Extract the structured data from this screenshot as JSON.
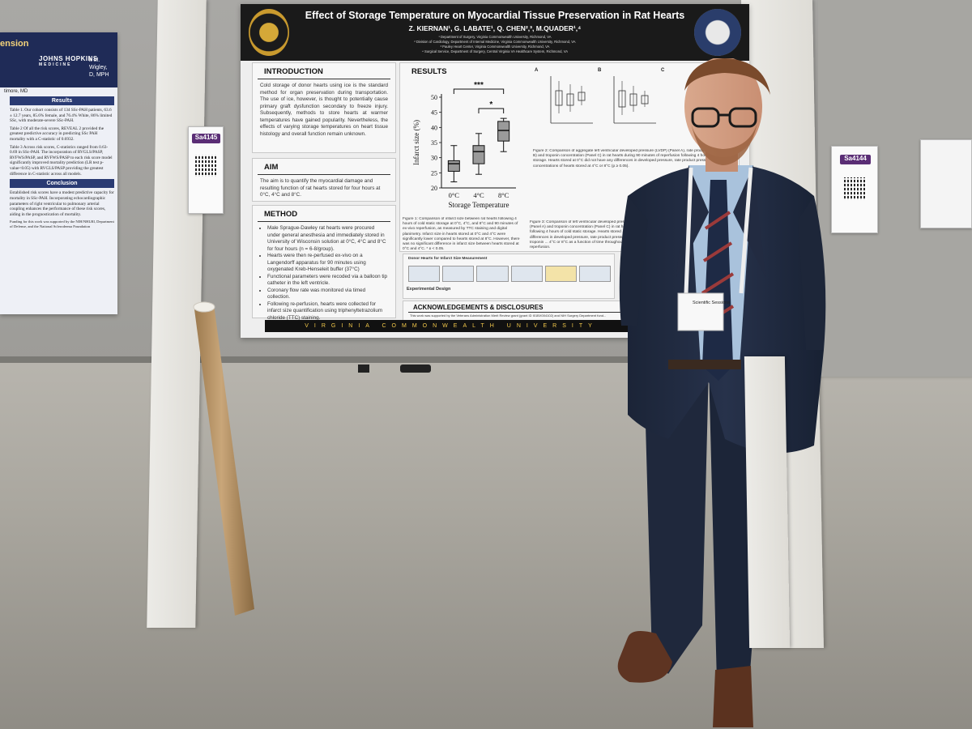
{
  "poster": {
    "title": "Effect of Storage Temperature on Myocardial Tissue Preservation in Rat Hearts",
    "authors": "Z. KIERNAN¹, G. LABATE¹, Q. CHEN²,³, M.QUADER¹,⁴",
    "affiliations": [
      "¹ Department of Surgery, Virginia Commonwealth University, Richmond, VA",
      "² Division of Cardiology, Department of Internal Medicine, Virginia Commonwealth University, Richmond, VA",
      "³ Pauley Heart Center, Virginia Commonwealth University, Richmond, VA",
      "⁴ Surgical Service, Department of Surgery, Central Virginia VA Healthcare System, Richmond, VA"
    ],
    "footer": "VIRGINIA COMMONWEALTH UNIVERSITY",
    "introduction": {
      "heading": "INTRODUCTION",
      "text": "Cold storage of donor hearts using ice is the standard method for organ preservation during transportation. The use of ice, however, is thought to potentially cause primary graft dysfunction secondary to freeze injury. Subsequently, methods to store hearts at warmer temperatures have gained popularity. Nevertheless, the effects of varying storage temperatures on heart tissue histology and overall function remain unknown."
    },
    "aim": {
      "heading": "AIM",
      "text": "The aim is to quantify the myocardial damage and resulting function of rat hearts stored for four hours at 0°C, 4°C and 8°C."
    },
    "method": {
      "heading": "METHOD",
      "items": [
        "Male Sprague-Dawley rat hearts were procured under general anesthesia and immediately stored in University of Wisconsin solution at 0°C, 4°C and 8°C for four hours (n = 6-8/group).",
        "Hearts were then re-perfused ex-vivo on a Langendorff apparatus for 90 minutes using oxygenated Kreb-Henseleit buffer (37°C)",
        "Functional parameters were recoded via a balloon tip catheter in the left ventricle.",
        "Coronary flow rate was monitored via timed collection.",
        "Following re-perfusion, hearts were collected for infarct size quantification using triphenyltetrazolium chloride (TTC) staining."
      ]
    },
    "results": {
      "heading": "RESULTS",
      "fig1_caption": "Figure 1: Comparison of infarct size between rat hearts following 4 hours of cold static storage at 0°C, 4°C, and 8°C and 90 minutes of ex-vivo reperfusion, as measured by TTC staining and digital planimetry. Infarct size in hearts stored at 0°C and 4°C were significantly lower compared to hearts stored at 8°C. However, there was no significant difference in infarct size between hearts stored at 0°C and 4°C. * p < 0.05.",
      "fig2_caption": "Figure 2: Comparison of aggregate left ventricular developed pressure (LVDP) (Panel A), rate product (RPP) (Panel B) and troponin concentration (Panel C) in rat hearts during 90 minutes of reperfusion following 4 hours of cold static storage. Hearts stored at 0°C did not have any differences in developed pressure, rate product pressure and troponin concentrations of hearts stored at 4°C or 8°C (p ≥ 0.05).",
      "fig3_caption": "Figure 3: Comparison of left ventricular developed pressure (Panel A) and troponin concentration (Panel C) in rat hearts following 4 hours of cold static storage. Hearts stored ... differences in developed pressure, rate product pressure and troponin ... 4°C or 8°C as a function of time throughout reperfusion.",
      "panel_labels": [
        "A",
        "B",
        "C"
      ],
      "panel_ylabels": [
        "Developed Pressure (mmHg)",
        "Rate Pressure Product (RPM x mmHg)",
        "Troponin Concentration (ng/mL)"
      ],
      "panel_xlabel": "Storage Temperature",
      "panel_ticks": [
        "0°C",
        "4°C",
        "8°C"
      ]
    },
    "design": {
      "title": "Donor Hearts for Infarct Size Measurement",
      "label": "Experimental Design"
    },
    "acknowledgements": {
      "heading": "ACKNOWLEDGEMENTS & DISCLOSURES",
      "text": "This work was supported by the Veterans Administration Merit Review grant (grant ID I01BX004102) and NIH Surgery Department fund..."
    }
  },
  "chart_data": {
    "type": "box",
    "title": "",
    "xlabel": "Storage Temperature",
    "ylabel": "Infarct size (%)",
    "ylim": [
      20,
      50
    ],
    "yticks": [
      20,
      25,
      30,
      35,
      40,
      45,
      50
    ],
    "categories": [
      "0°C",
      "4°C",
      "8°C"
    ],
    "boxes": [
      {
        "category": "0°C",
        "min": 22,
        "q1": 25.5,
        "median": 28,
        "q3": 29,
        "max": 34
      },
      {
        "category": "4°C",
        "min": 24.5,
        "q1": 28,
        "median": 32,
        "q3": 34,
        "max": 38
      },
      {
        "category": "8°C",
        "min": 32,
        "q1": 35.5,
        "median": 39,
        "q3": 42,
        "max": 43
      }
    ],
    "annotations": [
      {
        "text": "***",
        "from": "0°C",
        "to": "8°C"
      },
      {
        "text": "*",
        "from": "4°C",
        "to": "8°C"
      }
    ],
    "box_color": "#9a9a9a"
  },
  "left_poster": {
    "title": "ension",
    "logo": "JOHNS HOPKINS",
    "logo_sub": "MEDICINE",
    "byline": [
      "k M. Wigley,",
      "D, MPH",
      "timore, MD"
    ],
    "results_heading": "Results",
    "results_text": [
      "Table 1. Our cohort consists of 134 SSc-PAH patients, 63.6 ± 12.7 years, 85.6% female, and 76.4% White, 86% limited SSc, with moderate-severe SSc-PAH.",
      "Table 2 Of all the risk scores, REVEAL 2 provided the greatest predictive accuracy in predicting SSc PAH mortality with a C-statistic of 0.6932.",
      "Table 3 Across risk scores, C-statistics ranged from 0.63-0.69 in SSc-PAH. The incorporation of RVGLS/PASP, RVFWS/PASP, and RVFWS/PASP to each risk score model significantly improved mortality prediction (LR test p-value<0.05) with RVGLS/PASP providing the greatest difference in C-statistic across all models."
    ],
    "conclusion_heading": "Conclusion",
    "conclusion_text": "Established risk scores have a modest predictive capacity for mortality in SSc-PAH. Incorporating echocardiographic parameters of right ventricular to pulmonary arterial coupling enhances the performance of these risk scores, aiding in the prognostication of mortality.",
    "funding": "Funding for this work was supported by the NIH/NHLBI, Department of Defense, and the National Scleroderma Foundation"
  },
  "board_ids": {
    "left": "Sa4145",
    "right": "Sa4144"
  },
  "lanyard_badge": {
    "event": "Scientific Sessions"
  }
}
